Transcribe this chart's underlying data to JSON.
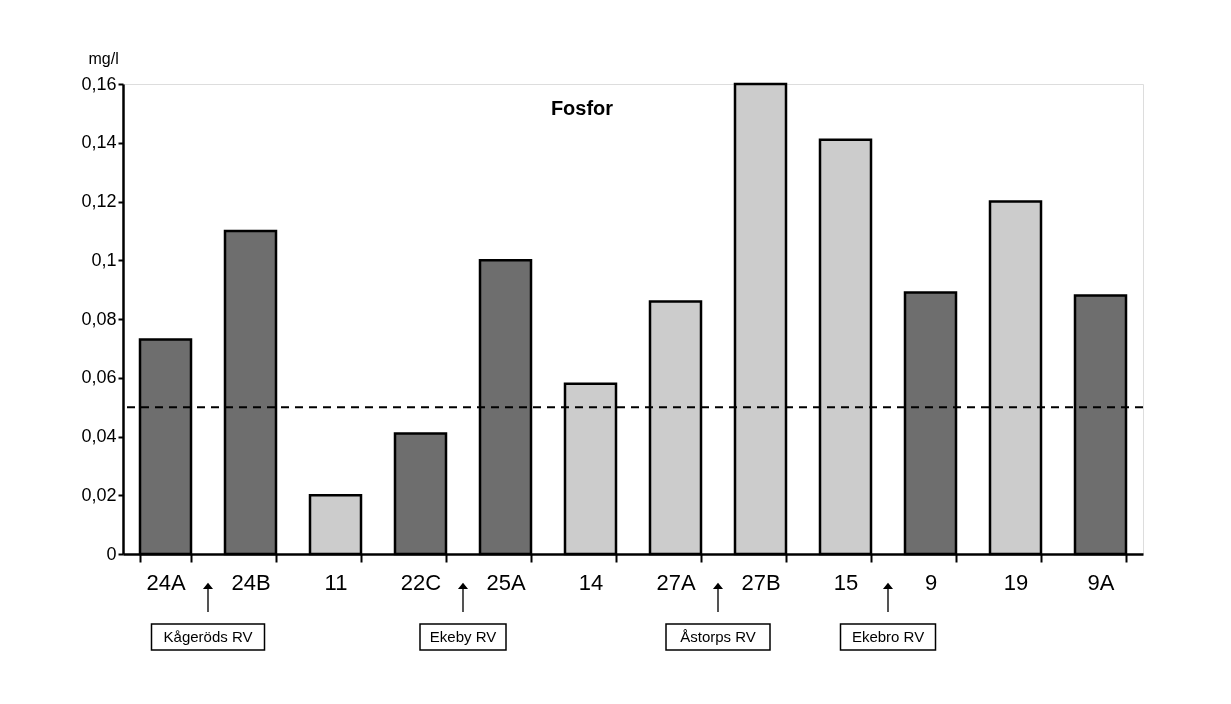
{
  "chart_data": {
    "type": "bar",
    "title": "Fosfor",
    "ylabel": "mg/l",
    "categories": [
      "24A",
      "24B",
      "11",
      "22C",
      "25A",
      "14",
      "27A",
      "27B",
      "15",
      "9",
      "19",
      "9A"
    ],
    "values": [
      0.073,
      0.11,
      0.02,
      0.041,
      0.1,
      0.058,
      0.086,
      0.16,
      0.141,
      0.089,
      0.12,
      0.088
    ],
    "colors": [
      "#6e6e6e",
      "#6e6e6e",
      "#cccccc",
      "#6e6e6e",
      "#6e6e6e",
      "#cccccc",
      "#cccccc",
      "#cccccc",
      "#cccccc",
      "#6e6e6e",
      "#cccccc",
      "#6e6e6e"
    ],
    "ylim": [
      0,
      0.16
    ],
    "yticks": [
      0,
      {
        "value": 0.02,
        "label": "0,02"
      },
      {
        "value": 0.04,
        "label": "0,04"
      },
      {
        "value": 0.06,
        "label": "0,06"
      },
      {
        "value": 0.08,
        "label": "0,08"
      },
      {
        "value": 0.1,
        "label": "0,1"
      },
      {
        "value": 0.12,
        "label": "0,12"
      },
      {
        "value": 0.14,
        "label": "0,14"
      },
      {
        "value": 0.16,
        "label": "0,16"
      }
    ],
    "grid": false,
    "ref_lines": [
      {
        "axis": "y",
        "value": 0.05,
        "line_style": "dashed",
        "color": "#000000"
      }
    ],
    "annotations": [
      "Kågeröds RV",
      "Ekeby RV",
      "Åstorps RV",
      "Ekebro RV"
    ]
  }
}
